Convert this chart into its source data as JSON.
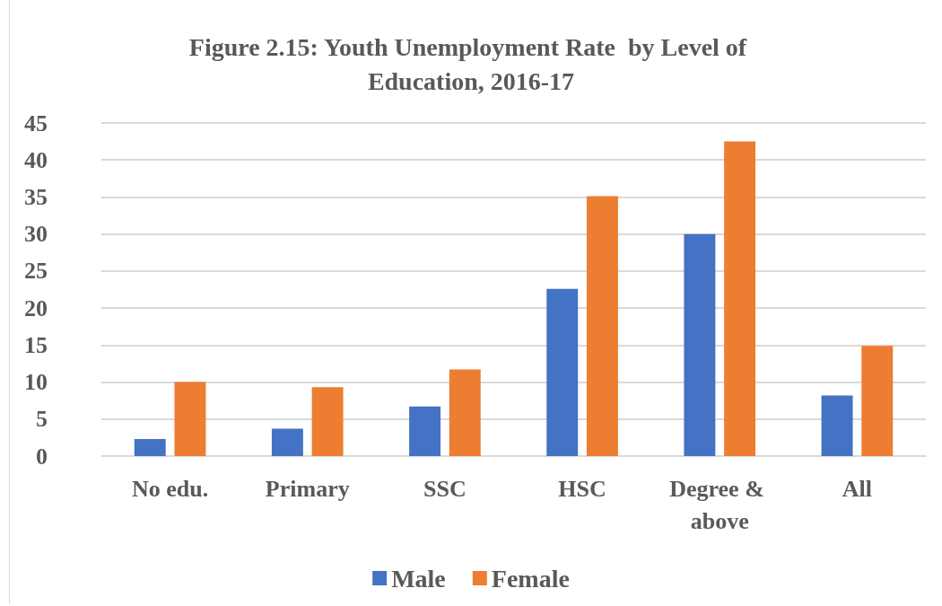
{
  "chart_data": {
    "type": "bar",
    "title": "Figure 2.15: Youth Unemployment Rate  by Level of Education, 2016-17",
    "categories": [
      "No edu.",
      "Primary",
      "SSC",
      "HSC",
      "Degree & above",
      "All"
    ],
    "series": [
      {
        "name": "Male",
        "color": "#4472c4",
        "values": [
          2.3,
          3.7,
          6.7,
          22.6,
          30.0,
          8.2
        ]
      },
      {
        "name": "Female",
        "color": "#ed7d31",
        "values": [
          10.0,
          9.3,
          11.7,
          35.1,
          42.5,
          14.9
        ]
      }
    ],
    "ylim": [
      0,
      45
    ],
    "yticks": [
      0,
      5,
      10,
      15,
      20,
      25,
      30,
      35,
      40,
      45
    ],
    "grid": "y",
    "legend": "bottom"
  }
}
